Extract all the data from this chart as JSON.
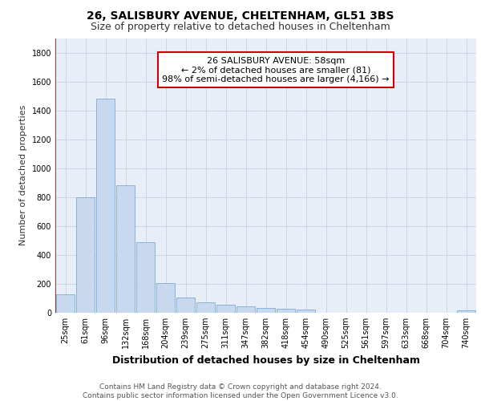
{
  "title1": "26, SALISBURY AVENUE, CHELTENHAM, GL51 3BS",
  "title2": "Size of property relative to detached houses in Cheltenham",
  "xlabel": "Distribution of detached houses by size in Cheltenham",
  "ylabel": "Number of detached properties",
  "categories": [
    "25sqm",
    "61sqm",
    "96sqm",
    "132sqm",
    "168sqm",
    "204sqm",
    "239sqm",
    "275sqm",
    "311sqm",
    "347sqm",
    "382sqm",
    "418sqm",
    "454sqm",
    "490sqm",
    "525sqm",
    "561sqm",
    "597sqm",
    "633sqm",
    "668sqm",
    "704sqm",
    "740sqm"
  ],
  "values": [
    130,
    800,
    1480,
    880,
    490,
    205,
    105,
    70,
    55,
    45,
    35,
    30,
    20,
    0,
    0,
    0,
    0,
    0,
    0,
    0,
    15
  ],
  "bar_color": "#c8d9ef",
  "bar_edge_color": "#7baad4",
  "ylim": [
    0,
    1900
  ],
  "yticks": [
    0,
    200,
    400,
    600,
    800,
    1000,
    1200,
    1400,
    1600,
    1800
  ],
  "red_line_x": -0.5,
  "annotation_text_line1": "26 SALISBURY AVENUE: 58sqm",
  "annotation_text_line2": "← 2% of detached houses are smaller (81)",
  "annotation_text_line3": "98% of semi-detached houses are larger (4,166) →",
  "annotation_box_color": "#cc0000",
  "bg_color": "#e8eef8",
  "grid_color": "#c8cfe0",
  "footer_text": "Contains HM Land Registry data © Crown copyright and database right 2024.\nContains public sector information licensed under the Open Government Licence v3.0.",
  "title1_fontsize": 10,
  "title2_fontsize": 9,
  "xlabel_fontsize": 9,
  "ylabel_fontsize": 8,
  "tick_fontsize": 7,
  "annotation_fontsize": 8,
  "footer_fontsize": 6.5
}
